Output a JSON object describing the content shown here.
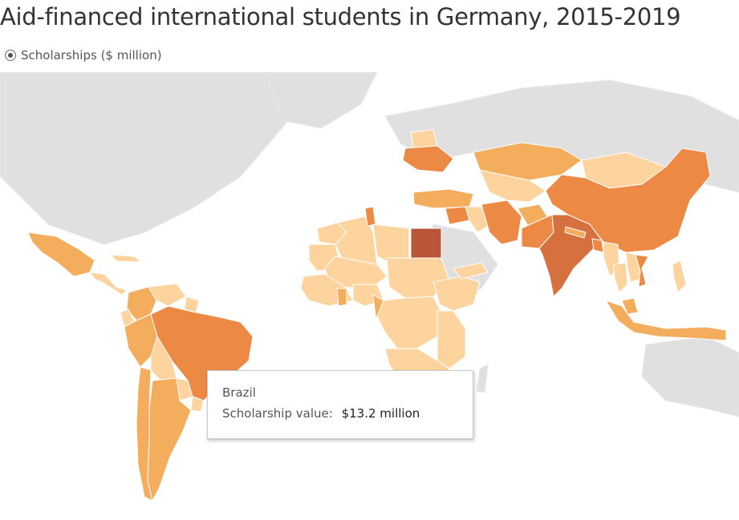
{
  "title": "Aid-financed international students in Germany, 2015-2019",
  "legend": {
    "label": "Scholarships ($ million)",
    "selected": true
  },
  "colors": {
    "background_land": "#e0e0e0",
    "no_data": "#ffffff",
    "level_1": "#fdd49e",
    "level_2": "#f4ad5c",
    "level_3": "#ec8a45",
    "level_4": "#d6703f",
    "level_5": "#b8553a"
  },
  "map": {
    "countries": [
      {
        "name": "Mexico",
        "level": 2
      },
      {
        "name": "Cuba",
        "level": 1
      },
      {
        "name": "Guatemala",
        "level": 1
      },
      {
        "name": "Honduras",
        "level": 1
      },
      {
        "name": "Nicaragua",
        "level": 1
      },
      {
        "name": "Costa Rica",
        "level": 1
      },
      {
        "name": "Panama",
        "level": 1
      },
      {
        "name": "Colombia",
        "level": 2
      },
      {
        "name": "Venezuela",
        "level": 1
      },
      {
        "name": "Guyana",
        "level": 1
      },
      {
        "name": "Ecuador",
        "level": 1
      },
      {
        "name": "Peru",
        "level": 2
      },
      {
        "name": "Bolivia",
        "level": 1
      },
      {
        "name": "Brazil",
        "level": 3
      },
      {
        "name": "Paraguay",
        "level": 1
      },
      {
        "name": "Uruguay",
        "level": 1
      },
      {
        "name": "Argentina",
        "level": 2
      },
      {
        "name": "Chile",
        "level": 2
      },
      {
        "name": "Ukraine",
        "level": 3
      },
      {
        "name": "Belarus",
        "level": 1
      },
      {
        "name": "Moldova",
        "level": 1
      },
      {
        "name": "Turkey",
        "level": 2
      },
      {
        "name": "Kazakhstan",
        "level": 2
      },
      {
        "name": "Uzbekistan",
        "level": 1
      },
      {
        "name": "Turkmenistan",
        "level": 1
      },
      {
        "name": "Kyrgyzstan",
        "level": 1
      },
      {
        "name": "Tajikistan",
        "level": 1
      },
      {
        "name": "Mongolia",
        "level": 1
      },
      {
        "name": "China",
        "level": 3
      },
      {
        "name": "Syria",
        "level": 3
      },
      {
        "name": "Iraq",
        "level": 1
      },
      {
        "name": "Iran",
        "level": 3
      },
      {
        "name": "Afghanistan",
        "level": 2
      },
      {
        "name": "Pakistan",
        "level": 3
      },
      {
        "name": "India",
        "level": 4
      },
      {
        "name": "Nepal",
        "level": 2
      },
      {
        "name": "Bangladesh",
        "level": 3
      },
      {
        "name": "Myanmar",
        "level": 1
      },
      {
        "name": "Thailand",
        "level": 1
      },
      {
        "name": "Vietnam",
        "level": 3
      },
      {
        "name": "Cambodia",
        "level": 1
      },
      {
        "name": "Laos",
        "level": 1
      },
      {
        "name": "Malaysia",
        "level": 2
      },
      {
        "name": "Indonesia",
        "level": 2
      },
      {
        "name": "Philippines",
        "level": 1
      },
      {
        "name": "Egypt",
        "level": 5
      },
      {
        "name": "Tunisia",
        "level": 3
      },
      {
        "name": "Algeria",
        "level": 1
      },
      {
        "name": "Morocco",
        "level": 1
      },
      {
        "name": "Mauritania",
        "level": 1
      },
      {
        "name": "Mali",
        "level": 1
      },
      {
        "name": "Niger",
        "level": 1
      },
      {
        "name": "Chad",
        "level": 1
      },
      {
        "name": "Sudan",
        "level": 1
      },
      {
        "name": "Ethiopia",
        "level": 1
      },
      {
        "name": "Nigeria",
        "level": 1
      },
      {
        "name": "Ghana",
        "level": 2
      },
      {
        "name": "Cameroon",
        "level": 2
      },
      {
        "name": "DR Congo",
        "level": 1
      },
      {
        "name": "Kenya",
        "level": 1
      },
      {
        "name": "Tanzania",
        "level": 1
      },
      {
        "name": "Yemen",
        "level": 1
      }
    ]
  },
  "tooltip": {
    "country": "Brazil",
    "label": "Scholarship value:",
    "value": "$13.2 million"
  }
}
